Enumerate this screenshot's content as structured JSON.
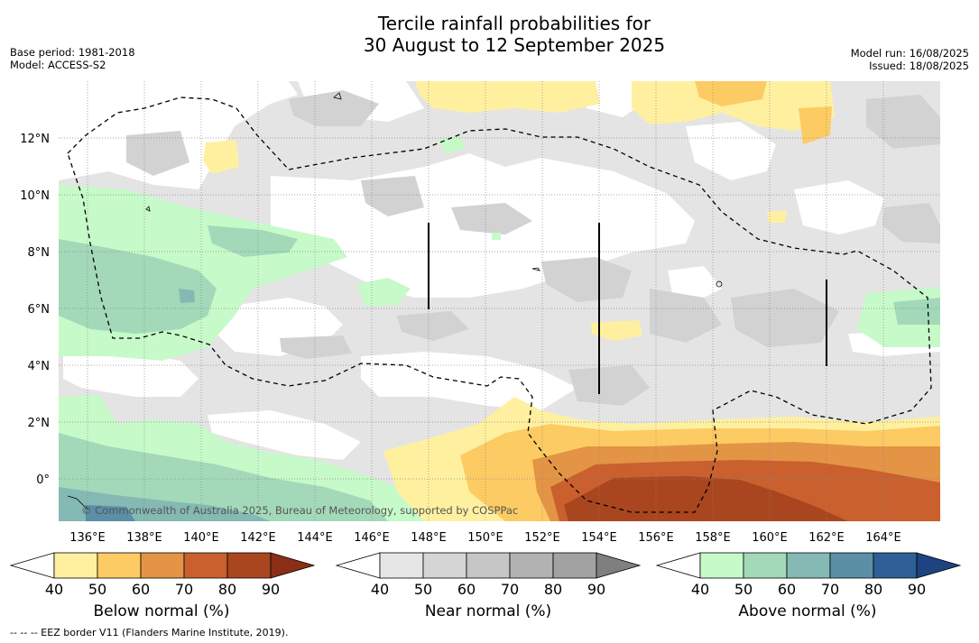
{
  "title": {
    "line1": "Tercile rainfall probabilities for",
    "line2": "30 August to 12 September 2025"
  },
  "meta_left": {
    "base_period": "Base period: 1981-2018",
    "model": "Model: ACCESS-S2"
  },
  "meta_right": {
    "model_run": "Model run: 16/08/2025",
    "issued": "Issued: 18/08/2025"
  },
  "map": {
    "lon_ticks": [
      "136°E",
      "138°E",
      "140°E",
      "142°E",
      "144°E",
      "146°E",
      "148°E",
      "150°E",
      "152°E",
      "154°E",
      "156°E",
      "158°E",
      "160°E",
      "162°E",
      "164°E"
    ],
    "lat_ticks": [
      "12°N",
      "10°N",
      "8°N",
      "6°N",
      "4°N",
      "2°N",
      "0°"
    ],
    "copyright": "© Commonwealth of Australia 2025, Bureau of Meteorology, supported by COSPPac",
    "eez_color": "#000000",
    "grid": true
  },
  "colorbars": [
    {
      "label": "Below normal (%)",
      "ticks": [
        "40",
        "50",
        "60",
        "70",
        "80",
        "90"
      ],
      "colors": [
        "#ffffff",
        "#fff0a0",
        "#fdcb63",
        "#e39445",
        "#c9602e",
        "#a9461f",
        "#8c2e17"
      ]
    },
    {
      "label": "Near normal (%)",
      "ticks": [
        "40",
        "50",
        "60",
        "70",
        "80",
        "90"
      ],
      "colors": [
        "#ffffff",
        "#e6e6e6",
        "#d5d5d5",
        "#c6c6c6",
        "#b2b2b2",
        "#a2a2a2",
        "#7f7f7f"
      ]
    },
    {
      "label": "Above normal (%)",
      "ticks": [
        "40",
        "50",
        "60",
        "70",
        "80",
        "90"
      ],
      "colors": [
        "#ffffff",
        "#c7fac9",
        "#a3d9b9",
        "#84b9b4",
        "#5a8fa6",
        "#2e5f96",
        "#1d4380"
      ]
    }
  ],
  "footnote": "--  --  -- EEZ border V11 (Flanders Marine Institute, 2019)."
}
